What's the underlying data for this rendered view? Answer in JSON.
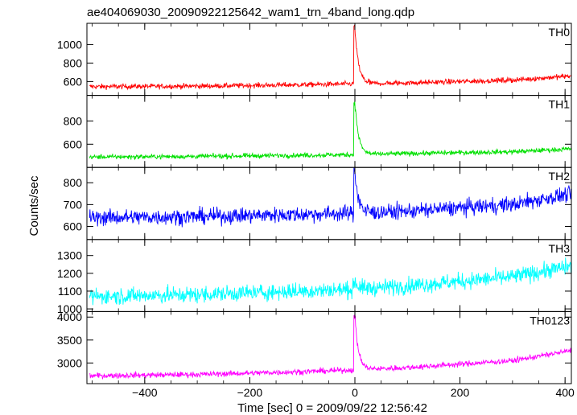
{
  "title": "ae404069030_20090922125642_wam1_trn_4band_long.qdp",
  "xlabel": "Time [sec] 0 = 2009/09/22 12:56:42",
  "ylabel": "Counts/sec",
  "chart_data": {
    "type": "line",
    "title": "ae404069030_20090922125642_wam1_trn_4band_long.qdp",
    "xlabel": "Time [sec] 0 = 2009/09/22 12:56:42",
    "ylabel": "Counts/sec",
    "xlim": [
      -510,
      412
    ],
    "xticks": [
      -400,
      -200,
      0,
      200,
      400
    ],
    "grid": false,
    "layout": "5 vertically stacked panels sharing the x axis",
    "panels": [
      {
        "name": "TH0",
        "color": "#ff0000",
        "ylim": [
          450,
          1230
        ],
        "yticks": [
          600,
          800,
          1000
        ],
        "baseline_x": [
          -510,
          -300,
          -100,
          0,
          100,
          300,
          412
        ],
        "baseline_y": [
          545,
          550,
          565,
          575,
          585,
          615,
          660
        ],
        "noise": 55,
        "peak": 1220,
        "points_x": [
          -500,
          -400,
          -300,
          -200,
          -100,
          -10,
          0,
          10,
          50,
          100,
          200,
          300,
          400
        ],
        "points_y": [
          540,
          545,
          550,
          555,
          565,
          570,
          1220,
          640,
          590,
          585,
          600,
          615,
          660
        ]
      },
      {
        "name": "TH1",
        "color": "#00e000",
        "ylim": [
          400,
          1020
        ],
        "yticks": [
          600,
          800
        ],
        "baseline_x": [
          -510,
          -300,
          -100,
          0,
          100,
          300,
          412
        ],
        "baseline_y": [
          490,
          495,
          505,
          510,
          520,
          535,
          560
        ],
        "noise": 40,
        "peak": 1000,
        "points_x": [
          -500,
          -400,
          -300,
          -200,
          -100,
          -10,
          0,
          10,
          50,
          100,
          200,
          300,
          400
        ],
        "points_y": [
          490,
          492,
          495,
          500,
          505,
          510,
          1000,
          580,
          530,
          520,
          525,
          535,
          560
        ]
      },
      {
        "name": "TH2",
        "color": "#0000ff",
        "ylim": [
          540,
          870
        ],
        "yticks": [
          600,
          700,
          800
        ],
        "baseline_x": [
          -510,
          -300,
          -100,
          0,
          100,
          300,
          412
        ],
        "baseline_y": [
          640,
          645,
          655,
          660,
          670,
          700,
          750
        ],
        "noise": 70,
        "peak": 870,
        "points_x": [
          -500,
          -400,
          -300,
          -200,
          -100,
          -10,
          0,
          10,
          50,
          100,
          200,
          300,
          400
        ],
        "points_y": [
          640,
          642,
          645,
          650,
          655,
          660,
          870,
          720,
          675,
          670,
          680,
          700,
          750
        ]
      },
      {
        "name": "TH3",
        "color": "#00ffff",
        "ylim": [
          985,
          1390
        ],
        "yticks": [
          1000,
          1100,
          1200,
          1300
        ],
        "baseline_x": [
          -510,
          -300,
          -100,
          0,
          100,
          300,
          412
        ],
        "baseline_y": [
          1070,
          1080,
          1100,
          1110,
          1130,
          1180,
          1240
        ],
        "noise": 90,
        "peak": 1160,
        "points_x": [
          -500,
          -400,
          -300,
          -200,
          -100,
          -10,
          0,
          10,
          50,
          100,
          200,
          300,
          400
        ],
        "points_y": [
          1070,
          1075,
          1080,
          1090,
          1100,
          1105,
          1160,
          1110,
          1115,
          1130,
          1150,
          1180,
          1240
        ]
      },
      {
        "name": "TH0123",
        "color": "#ff00ff",
        "ylim": [
          2550,
          4120
        ],
        "yticks": [
          3000,
          3500,
          4000
        ],
        "baseline_x": [
          -510,
          -300,
          -100,
          0,
          100,
          300,
          412
        ],
        "baseline_y": [
          2720,
          2750,
          2810,
          2850,
          2900,
          3050,
          3270
        ],
        "noise": 120,
        "peak": 4100,
        "points_x": [
          -500,
          -400,
          -300,
          -200,
          -100,
          -10,
          0,
          10,
          50,
          100,
          200,
          300,
          400
        ],
        "points_y": [
          2720,
          2730,
          2750,
          2780,
          2810,
          2840,
          4100,
          3100,
          2920,
          2900,
          2950,
          3050,
          3270
        ]
      }
    ]
  }
}
